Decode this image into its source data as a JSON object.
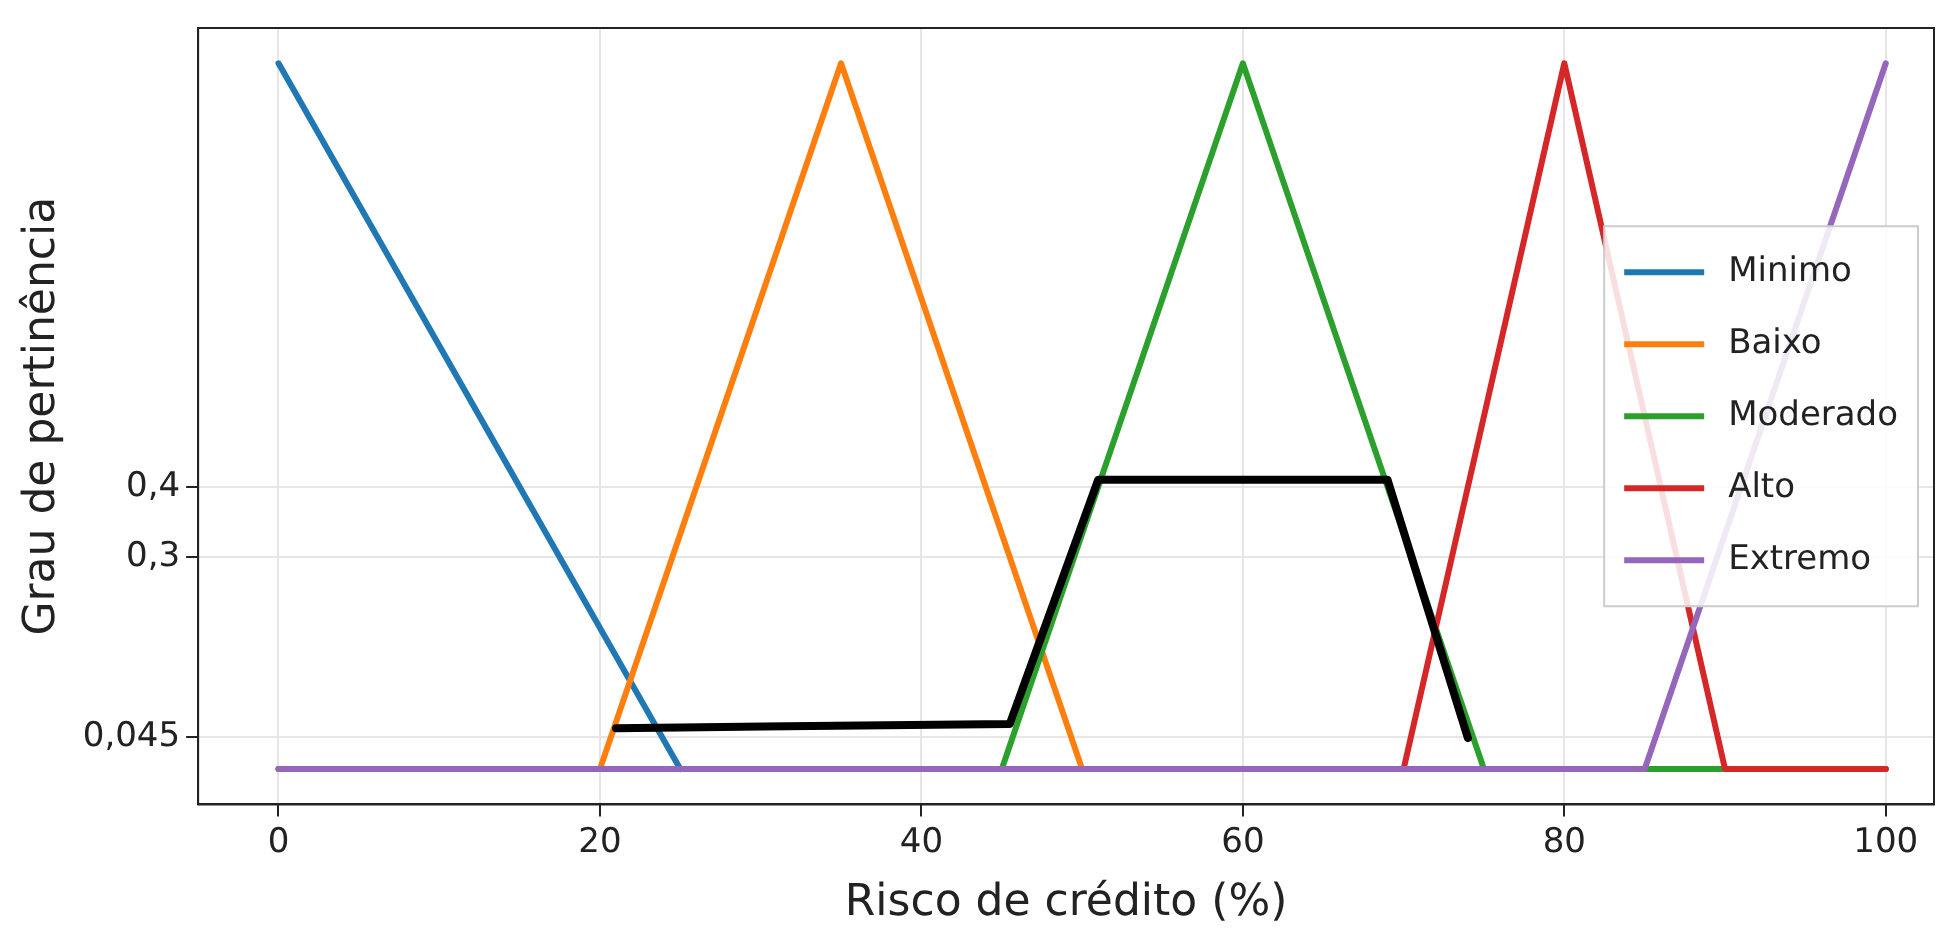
{
  "chart_data": {
    "type": "line",
    "xlabel": "Risco de crédito (%)",
    "ylabel": "Grau de pertinência",
    "xlim": [
      -5,
      103
    ],
    "ylim": [
      -0.05,
      1.05
    ],
    "xticks": [
      0,
      20,
      40,
      60,
      80,
      100
    ],
    "yticks": [
      {
        "value": 0.045,
        "label": "0,045"
      },
      {
        "value": 0.3,
        "label": "0,3"
      },
      {
        "value": 0.4,
        "label": "0,4"
      }
    ],
    "grid": true,
    "legend": "center right",
    "marker": "none",
    "line_style": "solid",
    "series": [
      {
        "name": "Minimo",
        "color": "#1f77b4",
        "x": [
          0,
          25
        ],
        "values": [
          1,
          0
        ]
      },
      {
        "name": "Baixo",
        "color": "#ff7f0e",
        "x": [
          0,
          20,
          35,
          50,
          100
        ],
        "values": [
          0,
          0,
          1,
          0,
          0
        ]
      },
      {
        "name": "Moderado",
        "color": "#2ca02c",
        "x": [
          0,
          45,
          60,
          75,
          100
        ],
        "values": [
          0,
          0,
          1,
          0,
          0
        ]
      },
      {
        "name": "Alto",
        "color": "#d62728",
        "x": [
          70,
          80,
          90,
          100
        ],
        "values": [
          0,
          1,
          0,
          0
        ]
      },
      {
        "name": "Extremo",
        "color": "#9467bd",
        "x": [
          0,
          85,
          100
        ],
        "values": [
          0,
          0,
          1
        ]
      },
      {
        "color": "#000000",
        "x": [
          21,
          45.5,
          51,
          69,
          74
        ],
        "values": [
          0.058,
          0.064,
          0.41,
          0.41,
          0.044
        ]
      }
    ]
  }
}
